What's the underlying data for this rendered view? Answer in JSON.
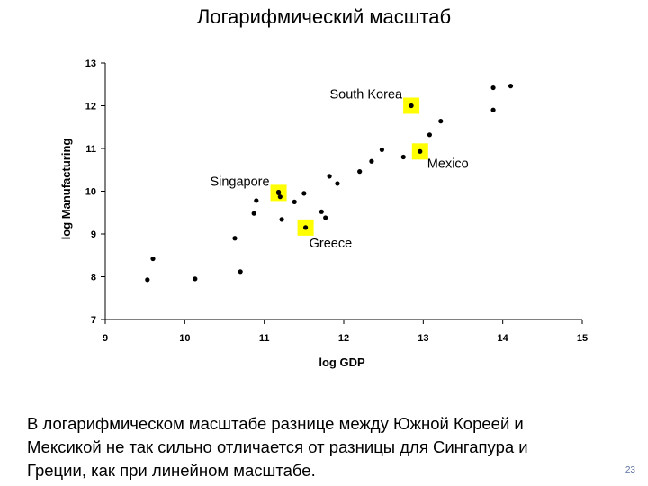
{
  "slide": {
    "title": "Логарифмический масштаб",
    "caption": "В логарифмическом масштабе разнице между Южной Кореей и Мексикой не так сильно отличается от разницы для Сингапура и Греции, как при линейном масштабе.",
    "page_number": "23"
  },
  "chart_data": {
    "type": "scatter",
    "xlabel": "log GDP",
    "ylabel": "log Manufacturing",
    "xlim": [
      9,
      15
    ],
    "ylim": [
      7,
      13
    ],
    "xticks": [
      9,
      10,
      11,
      12,
      13,
      14,
      15
    ],
    "yticks": [
      7,
      8,
      9,
      10,
      11,
      12,
      13
    ],
    "grid": false,
    "points": [
      [
        9.53,
        7.93
      ],
      [
        9.6,
        8.42
      ],
      [
        10.13,
        7.95
      ],
      [
        10.63,
        8.9
      ],
      [
        10.7,
        8.12
      ],
      [
        10.87,
        9.48
      ],
      [
        10.9,
        9.78
      ],
      [
        11.18,
        9.98
      ],
      [
        11.2,
        9.87
      ],
      [
        11.22,
        9.34
      ],
      [
        11.38,
        9.75
      ],
      [
        11.5,
        9.95
      ],
      [
        11.72,
        9.52
      ],
      [
        11.77,
        9.38
      ],
      [
        11.82,
        10.35
      ],
      [
        11.92,
        10.18
      ],
      [
        12.2,
        10.46
      ],
      [
        12.35,
        10.7
      ],
      [
        12.48,
        10.97
      ],
      [
        12.75,
        10.8
      ],
      [
        13.08,
        11.32
      ],
      [
        13.22,
        11.64
      ],
      [
        13.88,
        11.9
      ],
      [
        13.88,
        12.42
      ],
      [
        14.1,
        12.46
      ]
    ],
    "highlighted": [
      {
        "name": "South Korea",
        "x": 12.85,
        "y": 12.0
      },
      {
        "name": "Mexico",
        "x": 12.96,
        "y": 10.93
      },
      {
        "name": "Singapore",
        "x": 11.18,
        "y": 9.96
      },
      {
        "name": "Greece",
        "x": 11.52,
        "y": 9.15
      }
    ],
    "highlight_color": "#ffff00",
    "point_color": "#000000"
  }
}
